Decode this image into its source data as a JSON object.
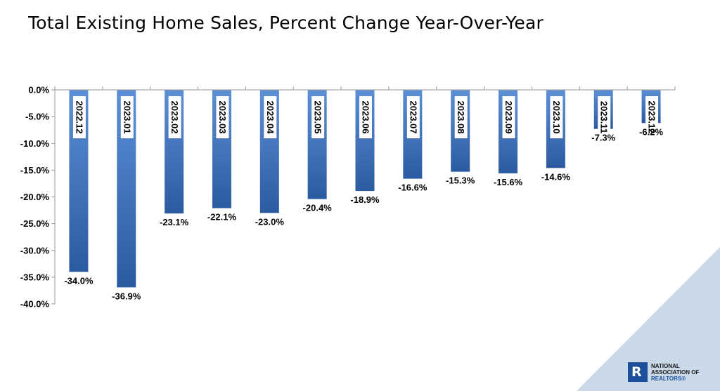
{
  "title": "Total Existing Home Sales, Percent Change Year-Over-Year",
  "colors": {
    "bar_top": "#5b8fd6",
    "bar_bottom": "#2c5aa0",
    "corner": "#c9d9e8",
    "logo_blue": "#1d4f9a"
  },
  "logo": {
    "mark": "R",
    "line1": "NATIONAL",
    "line2": "ASSOCIATION OF",
    "line3": "REALTORS®"
  },
  "chart_data": {
    "type": "bar",
    "title": "Total Existing Home Sales, Percent Change Year-Over-Year",
    "categories": [
      "2022.12",
      "2023.01",
      "2023.02",
      "2023.03",
      "2023.04",
      "2023.05",
      "2023.06",
      "2023.07",
      "2023.08",
      "2023.09",
      "2023.10",
      "2023.11",
      "2023.12"
    ],
    "values": [
      -34.0,
      -36.9,
      -23.1,
      -22.1,
      -23.0,
      -20.4,
      -18.9,
      -16.6,
      -15.3,
      -15.6,
      -14.6,
      -7.3,
      -6.2
    ],
    "data_labels": [
      "-34.0%",
      "-36.9%",
      "-23.1%",
      "-22.1%",
      "-23.0%",
      "-20.4%",
      "-18.9%",
      "-16.6%",
      "-15.3%",
      "-15.6%",
      "-14.6%",
      "-7.3%",
      "-6.2%"
    ],
    "y_ticks": [
      0,
      -5,
      -10,
      -15,
      -20,
      -25,
      -30,
      -35,
      -40
    ],
    "y_tick_labels": [
      "0.0%",
      "-5.0%",
      "-10.0%",
      "-15.0%",
      "-20.0%",
      "-25.0%",
      "-30.0%",
      "-35.0%",
      "-40.0%"
    ],
    "ylim": [
      -40,
      0
    ],
    "xlabel": "",
    "ylabel": "",
    "grid": false,
    "legend": "none"
  }
}
